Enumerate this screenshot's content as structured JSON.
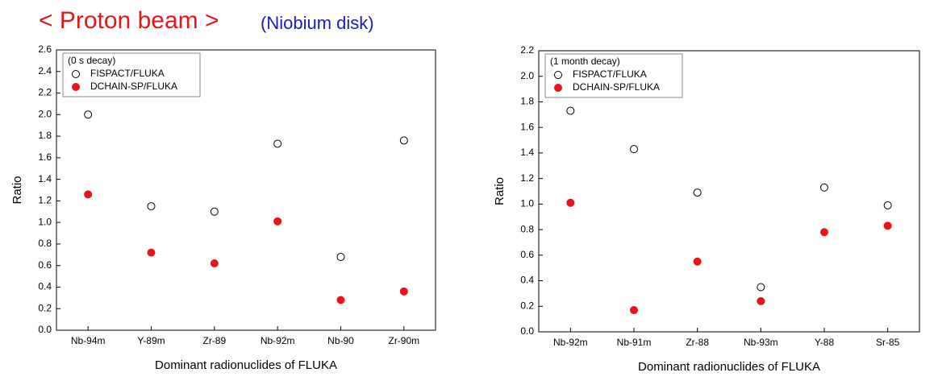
{
  "header": {
    "title": "< Proton beam >",
    "subtitle": "(Niobium disk)"
  },
  "chart_data": [
    {
      "type": "scatter",
      "legend_title": "(0 s decay)",
      "xlabel": "Dominant radionuclides of FLUKA",
      "ylabel": "Ratio",
      "categories": [
        "Nb-94m",
        "Y-89m",
        "Zr-89",
        "Nb-92m",
        "Nb-90",
        "Zr-90m"
      ],
      "series": [
        {
          "name": "FISPACT/FLUKA",
          "color": "#000000",
          "marker": "open",
          "values": [
            2.0,
            1.15,
            1.1,
            1.73,
            0.68,
            1.76
          ]
        },
        {
          "name": "DCHAIN-SP/FLUKA",
          "color": "#e8141a",
          "marker": "filled",
          "values": [
            1.26,
            0.72,
            0.62,
            1.01,
            0.28,
            0.36
          ]
        }
      ],
      "ylim": [
        0,
        2.6
      ],
      "yticks": [
        {
          "value": 0,
          "label": "0.0"
        },
        0.2,
        0.4,
        0.6,
        0.8,
        {
          "value": 1,
          "label": "1.0"
        },
        1.2,
        1.4,
        1.6,
        1.8,
        {
          "value": 2,
          "label": "2.0"
        },
        2.2,
        2.4,
        2.6
      ],
      "legend": "upper left"
    },
    {
      "type": "scatter",
      "legend_title": "(1 month decay)",
      "xlabel": "Dominant radionuclides of FLUKA",
      "ylabel": "Ratio",
      "categories": [
        "Nb-92m",
        "Nb-91m",
        "Zr-88",
        "Nb-93m",
        "Y-88",
        "Sr-85"
      ],
      "series": [
        {
          "name": "FISPACT/FLUKA",
          "color": "#000000",
          "marker": "open",
          "values": [
            1.73,
            1.43,
            1.09,
            0.35,
            1.13,
            0.99
          ]
        },
        {
          "name": "DCHAIN-SP/FLUKA",
          "color": "#e8141a",
          "marker": "filled",
          "values": [
            1.01,
            0.17,
            0.55,
            0.24,
            0.78,
            0.83
          ]
        }
      ],
      "ylim": [
        0,
        2.2
      ],
      "yticks": [
        {
          "value": 0,
          "label": "0.0"
        },
        0.2,
        0.4,
        0.6,
        0.8,
        {
          "value": 1,
          "label": "1.0"
        },
        1.2,
        1.4,
        1.6,
        1.8,
        {
          "value": 2,
          "label": "2.0"
        },
        2.2
      ],
      "legend": "upper left"
    }
  ]
}
